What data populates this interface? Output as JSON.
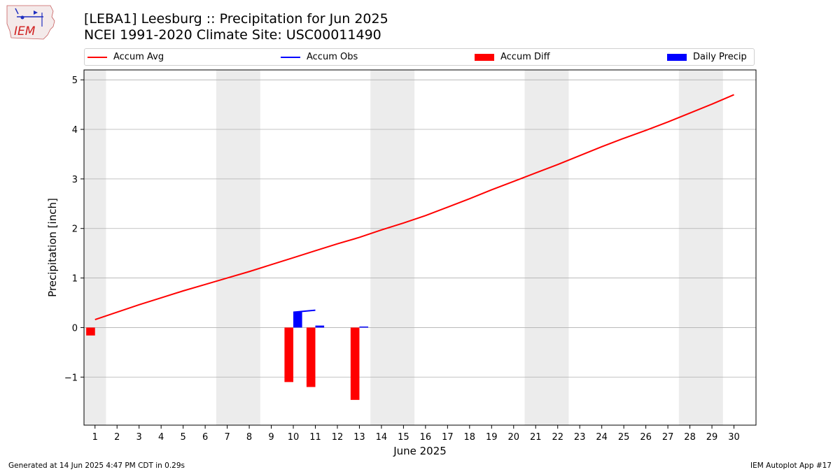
{
  "header": {
    "title_line1": "[LEBA1] Leesburg :: Precipitation for Jun 2025",
    "title_line2": "NCEI 1991-2020 Climate Site: USC00011490",
    "logo_text": "IEM"
  },
  "legend": {
    "items": [
      {
        "label": "Accum Avg",
        "color": "#ff0000",
        "kind": "line"
      },
      {
        "label": "Accum Obs",
        "color": "#0000ff",
        "kind": "line"
      },
      {
        "label": "Accum Diff",
        "color": "#ff0000",
        "kind": "bar"
      },
      {
        "label": "Daily Precip",
        "color": "#0000ff",
        "kind": "bar"
      }
    ]
  },
  "footer": {
    "left": "Generated at 14 Jun 2025 4:47 PM CDT in 0.29s",
    "right": "IEM Autoplot App #17"
  },
  "chart_data": {
    "type": "bar",
    "xlabel": "June 2025",
    "ylabel": "Precipitation [inch]",
    "xlim": [
      0.5,
      31
    ],
    "ylim": [
      -1.97,
      5.2
    ],
    "x_ticks": [
      1,
      2,
      3,
      4,
      5,
      6,
      7,
      8,
      9,
      10,
      11,
      12,
      13,
      14,
      15,
      16,
      17,
      18,
      19,
      20,
      21,
      22,
      23,
      24,
      25,
      26,
      27,
      28,
      29,
      30
    ],
    "y_ticks": [
      -1,
      0,
      1,
      2,
      3,
      4,
      5
    ],
    "y_tick_labels": [
      "−1",
      "0",
      "1",
      "2",
      "3",
      "4",
      "5"
    ],
    "grid": "y",
    "legend_position": "top",
    "weekend_shading": [
      [
        0.5,
        1.5
      ],
      [
        6.5,
        8.5
      ],
      [
        13.5,
        15.5
      ],
      [
        20.5,
        22.5
      ],
      [
        27.5,
        29.5
      ]
    ],
    "series": [
      {
        "name": "Accum Avg",
        "kind": "line",
        "color": "#ff0000",
        "x": [
          1,
          2,
          3,
          4,
          5,
          6,
          7,
          8,
          9,
          10,
          11,
          12,
          13,
          14,
          15,
          16,
          17,
          18,
          19,
          20,
          21,
          22,
          23,
          24,
          25,
          26,
          27,
          28,
          29,
          30
        ],
        "values": [
          0.16,
          0.31,
          0.46,
          0.6,
          0.74,
          0.87,
          1.0,
          1.13,
          1.27,
          1.41,
          1.55,
          1.69,
          1.82,
          1.97,
          2.11,
          2.26,
          2.43,
          2.6,
          2.78,
          2.95,
          3.12,
          3.29,
          3.47,
          3.65,
          3.82,
          3.98,
          4.15,
          4.33,
          4.51,
          4.7
        ]
      },
      {
        "name": "Accum Obs",
        "kind": "line",
        "color": "#0000ff",
        "x": [
          10,
          11
        ],
        "values": [
          0.31,
          0.35
        ]
      },
      {
        "name": "Accum Diff",
        "kind": "bar",
        "color": "#ff0000",
        "x": [
          1,
          10,
          11,
          13
        ],
        "values": [
          -0.16,
          -1.1,
          -1.2,
          -1.46
        ]
      },
      {
        "name": "Daily Precip",
        "kind": "bar",
        "color": "#0000ff",
        "x": [
          10,
          11,
          13
        ],
        "values": [
          0.31,
          0.04,
          0.02
        ]
      }
    ]
  }
}
